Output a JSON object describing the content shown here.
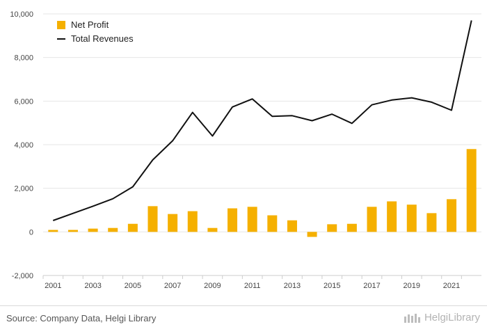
{
  "chart_data": {
    "type": "bar",
    "years": [
      2001,
      2002,
      2003,
      2004,
      2005,
      2006,
      2007,
      2008,
      2009,
      2010,
      2011,
      2012,
      2013,
      2014,
      2015,
      2016,
      2017,
      2018,
      2019,
      2020,
      2021,
      2022
    ],
    "x_tick_labels": [
      "2001",
      "2003",
      "2005",
      "2007",
      "2009",
      "2011",
      "2013",
      "2015",
      "2017",
      "2019",
      "2021"
    ],
    "y_tick_labels": [
      "10,000",
      "8,000",
      "6,000",
      "4,000",
      "2,000",
      "0",
      "-2,000"
    ],
    "y_ticks": [
      10000,
      8000,
      6000,
      4000,
      2000,
      0,
      -2000
    ],
    "ylim": [
      -2000,
      10000
    ],
    "grid": true,
    "legend_position": "top-left",
    "series": [
      {
        "name": "Net Profit",
        "kind": "bar",
        "color": "#f5b000",
        "values": [
          90,
          90,
          150,
          180,
          370,
          1180,
          820,
          950,
          180,
          1080,
          1150,
          760,
          530,
          -230,
          350,
          370,
          1150,
          1400,
          1250,
          860,
          1500,
          3800
        ]
      },
      {
        "name": "Total Revenues",
        "kind": "line",
        "color": "#111111",
        "values": [
          520,
          850,
          1180,
          1520,
          2070,
          3300,
          4180,
          5480,
          4400,
          5730,
          6100,
          5300,
          5330,
          5100,
          5400,
          4980,
          5830,
          6050,
          6150,
          5950,
          5580,
          9700
        ]
      }
    ]
  },
  "footer": {
    "source": "Source: Company Data, Helgi Library",
    "brand": "HelgiLibrary"
  },
  "colors": {
    "grid": "#e6e6e6",
    "axis": "#cccccc"
  }
}
